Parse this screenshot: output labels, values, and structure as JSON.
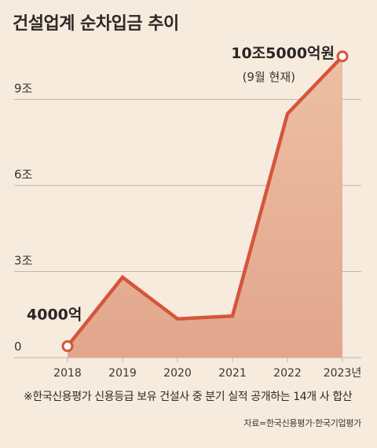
{
  "title": "건설업계 순차입금 추이",
  "chart_data": {
    "type": "area",
    "title": "건설업계 순차입금 추이",
    "unit": "조",
    "x": [
      "2018",
      "2019",
      "2020",
      "2021",
      "2022",
      "2023"
    ],
    "x_tick_labels": [
      "2018",
      "2019",
      "2020",
      "2021",
      "2022",
      "2023년"
    ],
    "values": [
      0.4,
      2.8,
      1.35,
      1.45,
      8.5,
      10.5
    ],
    "ylim": [
      0,
      12
    ],
    "y_ticks": [
      0,
      3,
      6,
      9
    ],
    "y_tick_labels": [
      "0",
      "3조",
      "6조",
      "9조"
    ],
    "grid": true,
    "annotations": [
      {
        "x": "2018",
        "text": "4000억"
      },
      {
        "x": "2023",
        "text": "10조5000억원",
        "subtext": "(9월 현재)"
      }
    ],
    "colors": {
      "line": "#d5553b",
      "area_top": "#edbfa3",
      "area_bottom": "#e2a68d",
      "background": "#f7ebde",
      "grid": "#c2b6a8"
    }
  },
  "footnote": "※한국신용평가 신용등급 보유 건설사 중 분기 실적 공개하는 14개 사 합산",
  "source": "자료=한국신용평가·한국기업평가"
}
